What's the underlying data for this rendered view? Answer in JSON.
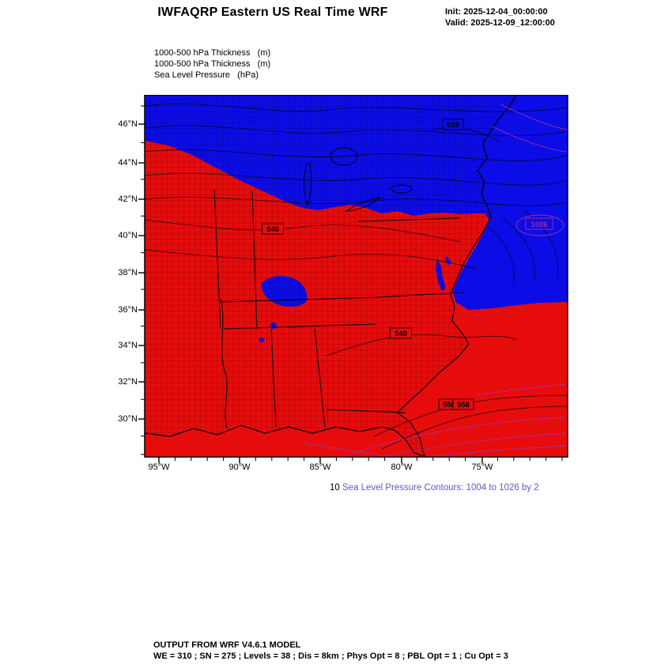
{
  "header": {
    "title": "IWFAQRP Eastern US Real Time WRF",
    "init_label": "Init: 2025-12-04_00:00:00",
    "valid_label": "Valid: 2025-12-09_12:00:00"
  },
  "legend": {
    "lines": [
      "1000-500 hPa Thickness   (m)",
      "1000-500 hPa Thickness   (m)",
      "Sea Level Pressure   (hPa)"
    ]
  },
  "map": {
    "lat_labels": [
      "46°N",
      "44°N",
      "42°N",
      "40°N",
      "38°N",
      "36°N",
      "34°N",
      "32°N",
      "30°N"
    ],
    "lon_labels": [
      "95°W",
      "90°W",
      "85°W",
      "80°W",
      "75°W"
    ],
    "colors": {
      "warm": "#e60c0c",
      "cold": "#0c0ce6",
      "slp": "#a8309a",
      "caption": "#6656c8"
    },
    "labels": {
      "thk546": "546",
      "thk540": "540",
      "thk558a": "558",
      "thk558b": "558",
      "thk528": "528",
      "slp1026": "1026"
    }
  },
  "caption": {
    "prefix": "10",
    "text": "Sea Level Pressure Contours: 1004 to 1026 by 2"
  },
  "footer": {
    "line1": "OUTPUT FROM WRF V4.6.1 MODEL",
    "line2": "WE = 310 ; SN = 275 ; Levels = 38 ; Dis = 8km ; Phys Opt = 8 ; PBL Opt = 1 ; Cu Opt = 3"
  }
}
